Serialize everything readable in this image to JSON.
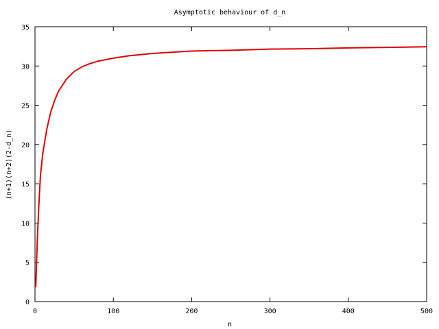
{
  "chart_data": {
    "type": "line",
    "title": "Asymptotic behaviour of d_n",
    "xlabel": "n",
    "ylabel": "(n+1)(n+2)(2-d_n)",
    "xlim": [
      0,
      500
    ],
    "ylim": [
      0,
      35
    ],
    "x_ticks": [
      "0",
      "100",
      "200",
      "300",
      "400",
      "500"
    ],
    "y_ticks": [
      "0",
      "5",
      "10",
      "15",
      "20",
      "25",
      "30",
      "35"
    ],
    "grid": false,
    "legend": "none",
    "series": [
      {
        "color": "#e00000",
        "x": [
          1,
          2,
          3,
          5,
          7,
          10,
          15,
          20,
          25,
          30,
          40,
          50,
          60,
          70,
          80,
          100,
          120,
          150,
          200,
          250,
          300,
          350,
          400,
          450,
          500
        ],
        "y": [
          1.9,
          4.8,
          7.9,
          12.4,
          16.1,
          18.9,
          21.9,
          24.1,
          25.6,
          26.8,
          28.3,
          29.3,
          29.9,
          30.3,
          30.6,
          31.0,
          31.3,
          31.6,
          31.9,
          32.0,
          32.15,
          32.2,
          32.3,
          32.37,
          32.45
        ]
      }
    ]
  }
}
